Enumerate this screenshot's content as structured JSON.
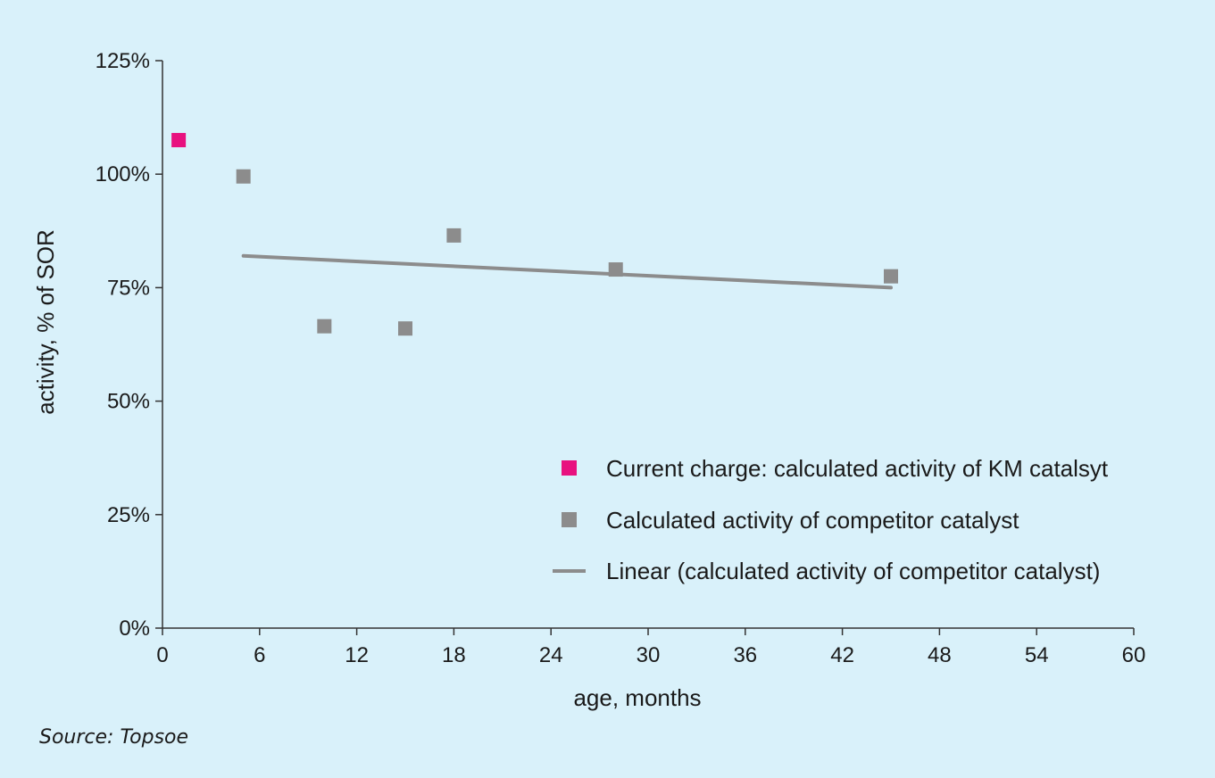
{
  "chart_data": {
    "type": "scatter",
    "xlabel": "age, months",
    "ylabel": "activity, % of SOR",
    "xlim": [
      0,
      60
    ],
    "ylim": [
      0,
      125
    ],
    "x_ticks": [
      0,
      6,
      12,
      18,
      24,
      30,
      36,
      42,
      48,
      54,
      60
    ],
    "y_ticks": [
      0,
      25,
      50,
      75,
      100,
      125
    ],
    "y_tick_labels": [
      "0%",
      "25%",
      "50%",
      "75%",
      "100%",
      "125%"
    ],
    "grid": false,
    "legend_position": "bottom-right",
    "series": [
      {
        "name": "Current charge: calculated activity of KM catalsyt",
        "color": "#e8117f",
        "points": [
          {
            "x": 1,
            "y": 107.5
          }
        ]
      },
      {
        "name": "Calculated activity of competitor catalyst",
        "color": "#8c8c8c",
        "points": [
          {
            "x": 5,
            "y": 99.5
          },
          {
            "x": 10,
            "y": 66.5
          },
          {
            "x": 15,
            "y": 66
          },
          {
            "x": 18,
            "y": 86.5
          },
          {
            "x": 28,
            "y": 79
          },
          {
            "x": 45,
            "y": 77.5
          }
        ]
      }
    ],
    "trendline": {
      "name": "Linear (calculated activity of competitor catalyst)",
      "color": "#8c8c8c",
      "start": {
        "x": 5,
        "y": 82
      },
      "end": {
        "x": 45,
        "y": 75
      }
    }
  },
  "source": "Source: Topsoe"
}
